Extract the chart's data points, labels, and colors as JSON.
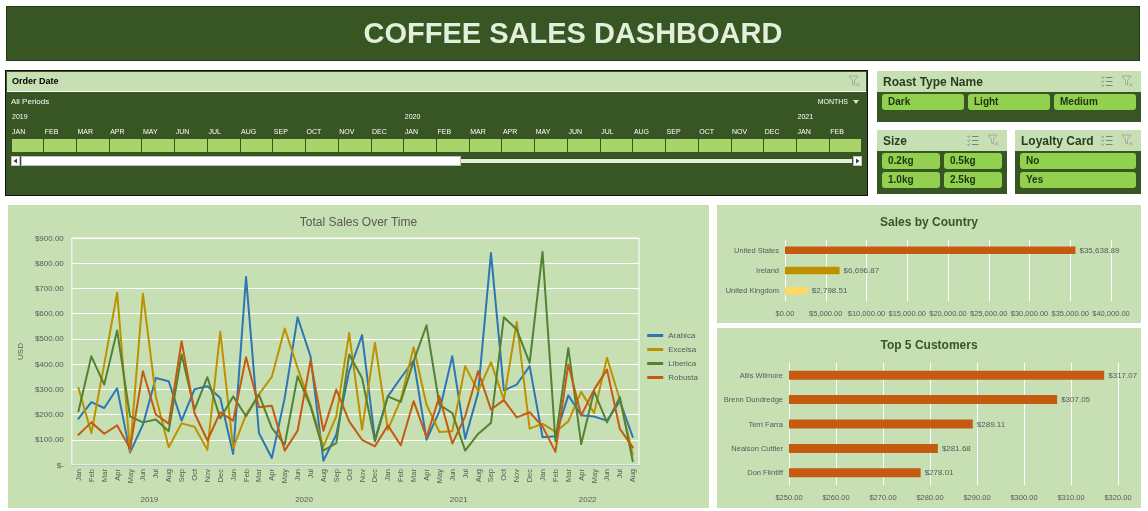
{
  "chart_data": [
    {
      "type": "other",
      "title": "COFFEE SALES DASHBOARD"
    },
    {
      "type": "other",
      "title": "Order Date",
      "subtitle": "All Periods",
      "annotations": [
        "MONTHS",
        "2019",
        "2020",
        "2021"
      ],
      "color": "#a9d46a",
      "categories": [
        "JAN",
        "FEB",
        "MAR",
        "APR",
        "MAY",
        "JUN",
        "JUL",
        "AUG",
        "SEP",
        "OCT",
        "NOV",
        "DEC",
        "JAN",
        "FEB",
        "MAR",
        "APR",
        "MAY",
        "JUN",
        "JUL",
        "AUG",
        "SEP",
        "OCT",
        "NOV",
        "DEC",
        "JAN",
        "FEB"
      ]
    },
    {
      "type": "other",
      "title": "Roast Type Name",
      "categories": [
        "Dark",
        "Light",
        "Medium"
      ],
      "color": "#92d050"
    },
    {
      "type": "other",
      "title": "Size",
      "categories": [
        "0.2kg",
        "0.5kg",
        "1.0kg",
        "2.5kg"
      ],
      "color": "#92d050"
    },
    {
      "type": "other",
      "title": "Loyalty Card",
      "categories": [
        "No",
        "Yes"
      ],
      "color": "#92d050"
    },
    {
      "type": "line",
      "title": "Total Sales Over Time",
      "ylabel": "USD",
      "x": [
        "2019-01",
        "2019-02",
        "2019-03",
        "2019-04",
        "2019-05",
        "2019-06",
        "2019-07",
        "2019-08",
        "2019-09",
        "2019-10",
        "2019-11",
        "2019-12",
        "2020-01",
        "2020-02",
        "2020-03",
        "2020-04",
        "2020-05",
        "2020-06",
        "2020-07",
        "2020-08",
        "2020-09",
        "2020-10",
        "2020-11",
        "2020-12",
        "2021-01",
        "2021-02",
        "2021-03",
        "2021-04",
        "2021-05",
        "2021-06",
        "2021-07",
        "2021-08",
        "2021-09",
        "2021-10",
        "2021-11",
        "2021-12",
        "2022-01",
        "2022-02",
        "2022-03",
        "2022-04",
        "2022-05",
        "2022-06",
        "2022-07",
        "2022-08"
      ],
      "xlim": [
        "2018-12-16",
        "2022-08-16"
      ],
      "xticks": [
        {
          "value": "2019-01",
          "label": "Jan"
        },
        {
          "value": "2019-02",
          "label": "Feb"
        },
        {
          "value": "2019-03",
          "label": "Mar"
        },
        {
          "value": "2019-04",
          "label": "Apr"
        },
        {
          "value": "2019-05",
          "label": "May"
        },
        {
          "value": "2019-06",
          "label": "Jun"
        },
        {
          "value": "2019-07",
          "label": "Jul"
        },
        {
          "value": "2019-08",
          "label": "Aug"
        },
        {
          "value": "2019-09",
          "label": "Sep"
        },
        {
          "value": "2019-10",
          "label": "Oct"
        },
        {
          "value": "2019-11",
          "label": "Nov"
        },
        {
          "value": "2019-12",
          "label": "Dec"
        },
        {
          "value": "2020-01",
          "label": "Jan"
        },
        {
          "value": "2020-02",
          "label": "Feb"
        },
        {
          "value": "2020-03",
          "label": "Mar"
        },
        {
          "value": "2020-04",
          "label": "Apr"
        },
        {
          "value": "2020-05",
          "label": "May"
        },
        {
          "value": "2020-06",
          "label": "Jun"
        },
        {
          "value": "2020-07",
          "label": "Jul"
        },
        {
          "value": "2020-08",
          "label": "Aug"
        },
        {
          "value": "2020-09",
          "label": "Sep"
        },
        {
          "value": "2020-10",
          "label": "Oct"
        },
        {
          "value": "2020-11",
          "label": "Nov"
        },
        {
          "value": "2020-12",
          "label": "Dec"
        },
        {
          "value": "2021-01",
          "label": "Jan"
        },
        {
          "value": "2021-02",
          "label": "Feb"
        },
        {
          "value": "2021-03",
          "label": "Mar"
        },
        {
          "value": "2021-04",
          "label": "Apr"
        },
        {
          "value": "2021-05",
          "label": "May"
        },
        {
          "value": "2021-06",
          "label": "Jun"
        },
        {
          "value": "2021-07",
          "label": "Jul"
        },
        {
          "value": "2021-08",
          "label": "Aug"
        },
        {
          "value": "2021-09",
          "label": "Sep"
        },
        {
          "value": "2021-10",
          "label": "Oct"
        },
        {
          "value": "2021-11",
          "label": "Nov"
        },
        {
          "value": "2021-12",
          "label": "Dec"
        },
        {
          "value": "2022-01",
          "label": "Jan"
        },
        {
          "value": "2022-02",
          "label": "Feb"
        },
        {
          "value": "2022-03",
          "label": "Mar"
        },
        {
          "value": "2022-04",
          "label": "Apr"
        },
        {
          "value": "2022-05",
          "label": "May"
        },
        {
          "value": "2022-06",
          "label": "Jun"
        },
        {
          "value": "2022-07",
          "label": "Jul"
        },
        {
          "value": "2022-08",
          "label": "Aug"
        }
      ],
      "x2lim": [
        "2018-12-16",
        "2022-08-16"
      ],
      "x2ticks": [
        {
          "value": "2019-06-16",
          "label": "2019"
        },
        {
          "value": "2020-06-16",
          "label": "2020"
        },
        {
          "value": "2021-06-16",
          "label": "2021"
        },
        {
          "value": "2022-04-16",
          "label": "2022"
        }
      ],
      "ylim": [
        0,
        900
      ],
      "yticks": [
        {
          "value": 0,
          "label": "$-"
        },
        {
          "value": 100,
          "label": "$100.00"
        },
        {
          "value": 200,
          "label": "$200.00"
        },
        {
          "value": 300,
          "label": "$300.00"
        },
        {
          "value": 400,
          "label": "$400.00"
        },
        {
          "value": 500,
          "label": "$500.00"
        },
        {
          "value": 600,
          "label": "$600.00"
        },
        {
          "value": 700,
          "label": "$700.00"
        },
        {
          "value": 800,
          "label": "$800.00"
        },
        {
          "value": 900,
          "label": "$900.00"
        }
      ],
      "grid": "y",
      "legend": "right",
      "series": [
        {
          "name": "Arabica",
          "color": "#2e75b6",
          "values": [
            184,
            249,
            226,
            304,
            49,
            160,
            345,
            332,
            176,
            300,
            312,
            266,
            44,
            745,
            127,
            28,
            266,
            586,
            431,
            17,
            120,
            372,
            515,
            100,
            272,
            345,
            414,
            100,
            213,
            431,
            104,
            286,
            841,
            296,
            319,
            392,
            110,
            114,
            276,
            197,
            192,
            176,
            253,
            111
          ]
        },
        {
          "name": "Excelsa",
          "color": "#bf9000",
          "values": [
            305,
            127,
            400,
            683,
            54,
            679,
            272,
            70,
            165,
            152,
            60,
            528,
            67,
            200,
            280,
            350,
            541,
            385,
            240,
            74,
            193,
            523,
            140,
            485,
            140,
            259,
            467,
            239,
            131,
            134,
            392,
            292,
            407,
            259,
            567,
            144,
            164,
            131,
            173,
            290,
            206,
            425,
            259,
            41
          ]
        },
        {
          "name": "Liberica",
          "color": "#548235",
          "values": [
            213,
            431,
            319,
            533,
            193,
            169,
            180,
            134,
            438,
            220,
            348,
            185,
            272,
            193,
            279,
            147,
            81,
            352,
            233,
            57,
            87,
            438,
            345,
            94,
            272,
            250,
            411,
            554,
            239,
            206,
            57,
            123,
            167,
            586,
            537,
            405,
            845,
            94,
            464,
            83,
            292,
            169,
            269,
            15
          ]
        },
        {
          "name": "Robusta",
          "color": "#c55a11",
          "values": [
            120,
            169,
            124,
            157,
            65,
            372,
            200,
            164,
            491,
            206,
            97,
            209,
            176,
            427,
            229,
            235,
            57,
            136,
            414,
            136,
            299,
            173,
            100,
            74,
            157,
            78,
            253,
            110,
            272,
            85,
            193,
            372,
            220,
            257,
            189,
            209,
            153,
            52,
            398,
            196,
            299,
            378,
            143,
            70
          ]
        }
      ]
    },
    {
      "type": "bar",
      "title": "Sales by Country",
      "orientation": "horizontal",
      "categories": [
        "United States",
        "Ireland",
        "United Kingdom"
      ],
      "values": [
        35638.89,
        6696.87,
        2798.51
      ],
      "colors": [
        "#c55a11",
        "#bf9000",
        "#ffd966"
      ],
      "value_labels": [
        "$35,638.89",
        "$6,696.87",
        "$2,798.51"
      ],
      "xlim": [
        0,
        40000
      ],
      "xticks": [
        {
          "value": 0,
          "label": "$0.00"
        },
        {
          "value": 5000,
          "label": "$5,000.00"
        },
        {
          "value": 10000,
          "label": "$10,000.00"
        },
        {
          "value": 15000,
          "label": "$15,000.00"
        },
        {
          "value": 20000,
          "label": "$20,000.00"
        },
        {
          "value": 25000,
          "label": "$25,000.00"
        },
        {
          "value": 30000,
          "label": "$30,000.00"
        },
        {
          "value": 35000,
          "label": "$35,000.00"
        },
        {
          "value": 40000,
          "label": "$40,000.00"
        }
      ],
      "grid": "x"
    },
    {
      "type": "bar",
      "title": "Top 5 Customers",
      "orientation": "horizontal",
      "categories": [
        "Allis Wilmore",
        "Brenn Dundredge",
        "Terri Farra",
        "Nealson Cuttler",
        "Don Flintiff"
      ],
      "values": [
        317.07,
        307.05,
        289.11,
        281.68,
        278.01
      ],
      "color": "#c55a11",
      "value_labels": [
        "$317.07",
        "$307.05",
        "$289.11",
        "$281.68",
        "$278.01"
      ],
      "xlim": [
        250,
        320
      ],
      "xticks": [
        {
          "value": 250,
          "label": "$250.00"
        },
        {
          "value": 260,
          "label": "$260.00"
        },
        {
          "value": 270,
          "label": "$270.00"
        },
        {
          "value": 280,
          "label": "$280.00"
        },
        {
          "value": 290,
          "label": "$290.00"
        },
        {
          "value": 300,
          "label": "$300.00"
        },
        {
          "value": 310,
          "label": "$310.00"
        },
        {
          "value": 320,
          "label": "$320.00"
        }
      ],
      "grid": "x"
    }
  ]
}
